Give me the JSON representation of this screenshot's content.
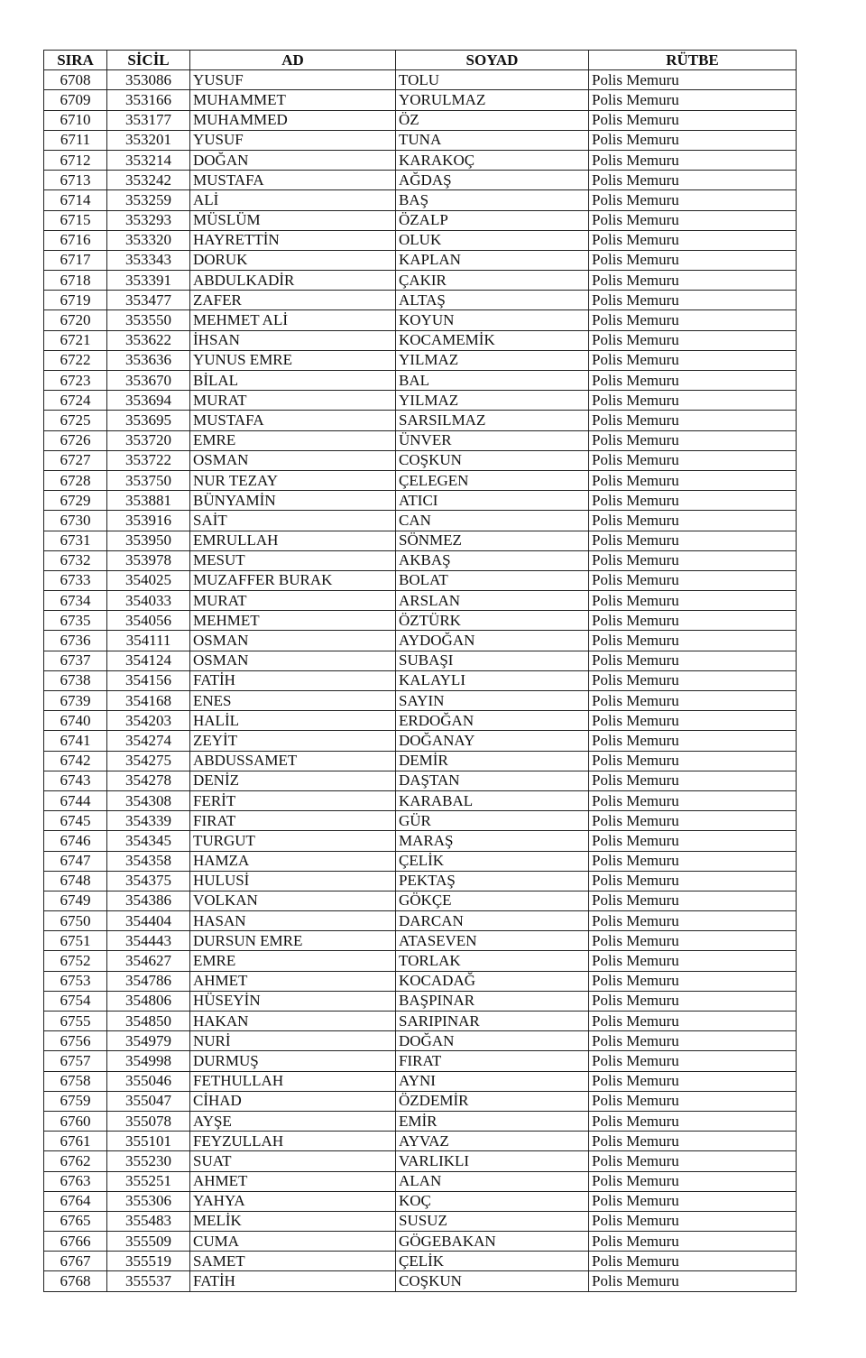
{
  "headers": [
    "SIRA",
    "SİCİL",
    "AD",
    "SOYAD",
    "RÜTBE"
  ],
  "rows": [
    [
      "6708",
      "353086",
      "YUSUF",
      "TOLU",
      "Polis Memuru"
    ],
    [
      "6709",
      "353166",
      "MUHAMMET",
      "YORULMAZ",
      "Polis Memuru"
    ],
    [
      "6710",
      "353177",
      "MUHAMMED",
      "ÖZ",
      "Polis Memuru"
    ],
    [
      "6711",
      "353201",
      "YUSUF",
      "TUNA",
      "Polis Memuru"
    ],
    [
      "6712",
      "353214",
      "DOĞAN",
      "KARAKOÇ",
      "Polis Memuru"
    ],
    [
      "6713",
      "353242",
      "MUSTAFA",
      "AĞDAŞ",
      "Polis Memuru"
    ],
    [
      "6714",
      "353259",
      "ALİ",
      "BAŞ",
      "Polis Memuru"
    ],
    [
      "6715",
      "353293",
      "MÜSLÜM",
      "ÖZALP",
      "Polis Memuru"
    ],
    [
      "6716",
      "353320",
      "HAYRETTİN",
      "OLUK",
      "Polis Memuru"
    ],
    [
      "6717",
      "353343",
      "DORUK",
      "KAPLAN",
      "Polis Memuru"
    ],
    [
      "6718",
      "353391",
      "ABDULKADİR",
      "ÇAKIR",
      "Polis Memuru"
    ],
    [
      "6719",
      "353477",
      "ZAFER",
      "ALTAŞ",
      "Polis Memuru"
    ],
    [
      "6720",
      "353550",
      "MEHMET ALİ",
      "KOYUN",
      "Polis Memuru"
    ],
    [
      "6721",
      "353622",
      "İHSAN",
      "KOCAMEMİK",
      "Polis Memuru"
    ],
    [
      "6722",
      "353636",
      "YUNUS EMRE",
      "YILMAZ",
      "Polis Memuru"
    ],
    [
      "6723",
      "353670",
      "BİLAL",
      "BAL",
      "Polis Memuru"
    ],
    [
      "6724",
      "353694",
      "MURAT",
      "YILMAZ",
      "Polis Memuru"
    ],
    [
      "6725",
      "353695",
      "MUSTAFA",
      "SARSILMAZ",
      "Polis Memuru"
    ],
    [
      "6726",
      "353720",
      "EMRE",
      "ÜNVER",
      "Polis Memuru"
    ],
    [
      "6727",
      "353722",
      "OSMAN",
      "COŞKUN",
      "Polis Memuru"
    ],
    [
      "6728",
      "353750",
      "NUR TEZAY",
      "ÇELEGEN",
      "Polis Memuru"
    ],
    [
      "6729",
      "353881",
      "BÜNYAMİN",
      "ATICI",
      "Polis Memuru"
    ],
    [
      "6730",
      "353916",
      "SAİT",
      "CAN",
      "Polis Memuru"
    ],
    [
      "6731",
      "353950",
      "EMRULLAH",
      "SÖNMEZ",
      "Polis Memuru"
    ],
    [
      "6732",
      "353978",
      "MESUT",
      "AKBAŞ",
      "Polis Memuru"
    ],
    [
      "6733",
      "354025",
      "MUZAFFER BURAK",
      "BOLAT",
      "Polis Memuru"
    ],
    [
      "6734",
      "354033",
      "MURAT",
      "ARSLAN",
      "Polis Memuru"
    ],
    [
      "6735",
      "354056",
      "MEHMET",
      "ÖZTÜRK",
      "Polis Memuru"
    ],
    [
      "6736",
      "354111",
      "OSMAN",
      "AYDOĞAN",
      "Polis Memuru"
    ],
    [
      "6737",
      "354124",
      "OSMAN",
      "SUBAŞI",
      "Polis Memuru"
    ],
    [
      "6738",
      "354156",
      "FATİH",
      "KALAYLI",
      "Polis Memuru"
    ],
    [
      "6739",
      "354168",
      "ENES",
      "SAYIN",
      "Polis Memuru"
    ],
    [
      "6740",
      "354203",
      "HALİL",
      "ERDOĞAN",
      "Polis Memuru"
    ],
    [
      "6741",
      "354274",
      "ZEYİT",
      "DOĞANAY",
      "Polis Memuru"
    ],
    [
      "6742",
      "354275",
      "ABDUSSAMET",
      "DEMİR",
      "Polis Memuru"
    ],
    [
      "6743",
      "354278",
      "DENİZ",
      "DAŞTAN",
      "Polis Memuru"
    ],
    [
      "6744",
      "354308",
      "FERİT",
      "KARABAL",
      "Polis Memuru"
    ],
    [
      "6745",
      "354339",
      "FIRAT",
      "GÜR",
      "Polis Memuru"
    ],
    [
      "6746",
      "354345",
      "TURGUT",
      "MARAŞ",
      "Polis Memuru"
    ],
    [
      "6747",
      "354358",
      "HAMZA",
      "ÇELİK",
      "Polis Memuru"
    ],
    [
      "6748",
      "354375",
      "HULUSİ",
      "PEKTAŞ",
      "Polis Memuru"
    ],
    [
      "6749",
      "354386",
      "VOLKAN",
      "GÖKÇE",
      "Polis Memuru"
    ],
    [
      "6750",
      "354404",
      "HASAN",
      "DARCAN",
      "Polis Memuru"
    ],
    [
      "6751",
      "354443",
      "DURSUN EMRE",
      "ATASEVEN",
      "Polis Memuru"
    ],
    [
      "6752",
      "354627",
      "EMRE",
      "TORLAK",
      "Polis Memuru"
    ],
    [
      "6753",
      "354786",
      "AHMET",
      "KOCADAĞ",
      "Polis Memuru"
    ],
    [
      "6754",
      "354806",
      "HÜSEYİN",
      "BAŞPINAR",
      "Polis Memuru"
    ],
    [
      "6755",
      "354850",
      "HAKAN",
      "SARIPINAR",
      "Polis Memuru"
    ],
    [
      "6756",
      "354979",
      "NURİ",
      "DOĞAN",
      "Polis Memuru"
    ],
    [
      "6757",
      "354998",
      "DURMUŞ",
      "FIRAT",
      "Polis Memuru"
    ],
    [
      "6758",
      "355046",
      "FETHULLAH",
      "AYNI",
      "Polis Memuru"
    ],
    [
      "6759",
      "355047",
      "CİHAD",
      "ÖZDEMİR",
      "Polis Memuru"
    ],
    [
      "6760",
      "355078",
      "AYŞE",
      "EMİR",
      "Polis Memuru"
    ],
    [
      "6761",
      "355101",
      "FEYZULLAH",
      "AYVAZ",
      "Polis Memuru"
    ],
    [
      "6762",
      "355230",
      "SUAT",
      "VARLIKLI",
      "Polis Memuru"
    ],
    [
      "6763",
      "355251",
      "AHMET",
      "ALAN",
      "Polis Memuru"
    ],
    [
      "6764",
      "355306",
      "YAHYA",
      "KOÇ",
      "Polis Memuru"
    ],
    [
      "6765",
      "355483",
      "MELİK",
      "SUSUZ",
      "Polis Memuru"
    ],
    [
      "6766",
      "355509",
      "CUMA",
      "GÖGEBAKAN",
      "Polis Memuru"
    ],
    [
      "6767",
      "355519",
      "SAMET",
      "ÇELİK",
      "Polis Memuru"
    ],
    [
      "6768",
      "355537",
      "FATİH",
      "COŞKUN",
      "Polis Memuru"
    ]
  ]
}
